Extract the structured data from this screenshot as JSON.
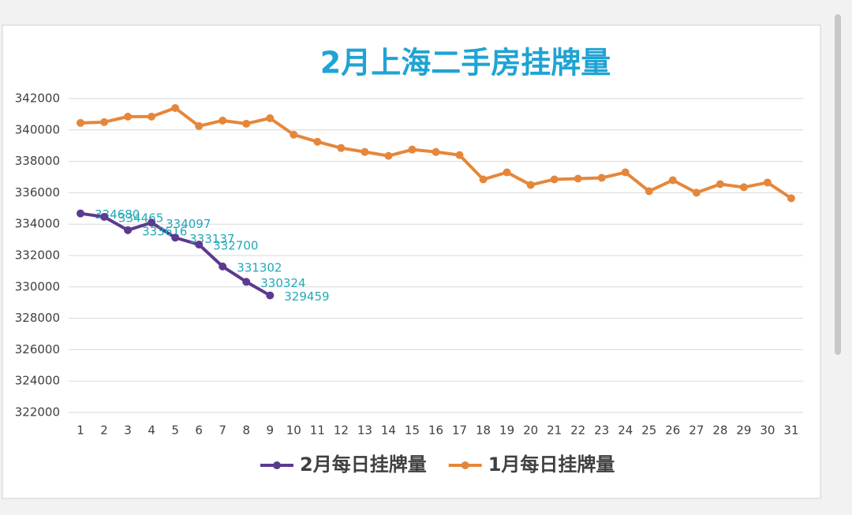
{
  "chart_data": {
    "type": "line",
    "title": "2月上海二手房挂牌量",
    "categories": [
      "1",
      "2",
      "3",
      "4",
      "5",
      "6",
      "7",
      "8",
      "9",
      "10",
      "11",
      "12",
      "13",
      "14",
      "15",
      "16",
      "17",
      "18",
      "19",
      "20",
      "21",
      "22",
      "23",
      "24",
      "25",
      "26",
      "27",
      "28",
      "29",
      "30",
      "31"
    ],
    "series": [
      {
        "name": "2月每日挂牌量",
        "color": "#5b3a8f",
        "data_labels": true,
        "values": [
          334680,
          334465,
          333616,
          334097,
          333137,
          332700,
          331302,
          330324,
          329459,
          null,
          null,
          null,
          null,
          null,
          null,
          null,
          null,
          null,
          null,
          null,
          null,
          null,
          null,
          null,
          null,
          null,
          null,
          null,
          null,
          null,
          null
        ]
      },
      {
        "name": "1月每日挂牌量",
        "color": "#e5873a",
        "data_labels": false,
        "values": [
          340450,
          340500,
          340850,
          340850,
          341400,
          340250,
          340600,
          340400,
          340750,
          339700,
          339250,
          338850,
          338600,
          338350,
          338750,
          338600,
          338400,
          336850,
          337300,
          336500,
          336850,
          336900,
          336950,
          337300,
          336100,
          336800,
          336000,
          336550,
          336350,
          336650,
          335650
        ]
      }
    ],
    "ylim": [
      322000,
      342000
    ],
    "yticks": [
      322000,
      324000,
      326000,
      328000,
      330000,
      332000,
      334000,
      336000,
      338000,
      340000,
      342000
    ],
    "grid": true,
    "legend": "bottom"
  }
}
